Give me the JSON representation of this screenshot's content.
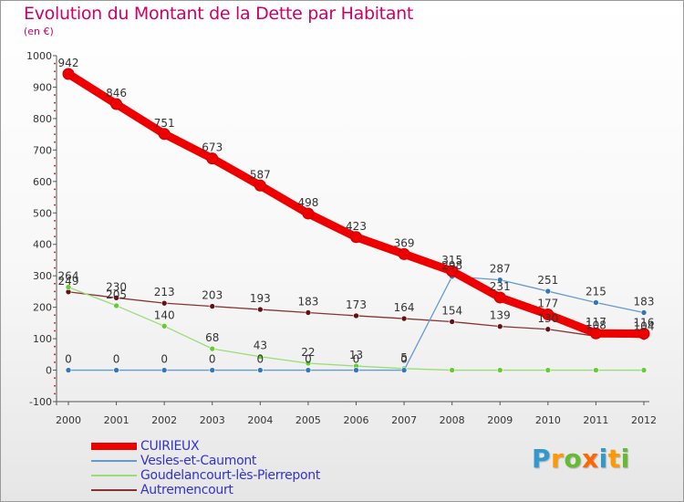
{
  "header": {
    "title": "Evolution du Montant de la Dette par Habitant",
    "subtitle": "(en €)"
  },
  "logo": {
    "text": "Proxiti",
    "letter_colors": [
      "#3399cc",
      "#ff9900",
      "#66bb33",
      "#ff6600",
      "#3399cc",
      "#ff9900",
      "#66bb33"
    ]
  },
  "chart_data": {
    "type": "line",
    "title": "Evolution du Montant de la Dette par Habitant",
    "subtitle": "(en €)",
    "x": [
      "2000",
      "2001",
      "2002",
      "2003",
      "2004",
      "2005",
      "2006",
      "2007",
      "2008",
      "2009",
      "2010",
      "2011",
      "2012"
    ],
    "ylim": [
      -100,
      1000
    ],
    "yticks": [
      -100,
      0,
      100,
      200,
      300,
      400,
      500,
      600,
      700,
      800,
      900,
      1000
    ],
    "grid": false,
    "legend_position": "bottom-left",
    "series": [
      {
        "name": "CUIRIEUX",
        "color": "#ee0000",
        "values": [
          942,
          846,
          751,
          673,
          587,
          498,
          423,
          369,
          315,
          231,
          177,
          117,
          116
        ],
        "labels": [
          "942",
          "846",
          "751",
          "673",
          "587",
          "498",
          "423",
          "369",
          "315",
          "231",
          "177",
          "117",
          "116"
        ]
      },
      {
        "name": "Vesles-et-Caumont",
        "color": "#6699cc",
        "marker_color": "#3377bb",
        "values": [
          0,
          0,
          0,
          0,
          0,
          0,
          0,
          0,
          298,
          287,
          251,
          215,
          183
        ],
        "labels": [
          "0",
          "0",
          "0",
          "0",
          "0",
          "0",
          "0",
          "0",
          "298",
          "287",
          "251",
          "215",
          "183"
        ]
      },
      {
        "name": "Goudelancourt-lès-Pierrepont",
        "color": "#99dd77",
        "marker_color": "#66cc33",
        "values": [
          264,
          205,
          140,
          68,
          43,
          22,
          13,
          5,
          0,
          0,
          0,
          0,
          0
        ],
        "labels": [
          "264",
          "205",
          "140",
          "68",
          "43",
          "22",
          "13",
          "5",
          "",
          "",
          "",
          "",
          ""
        ]
      },
      {
        "name": "Autremencourt",
        "color": "#883333",
        "marker_color": "#661111",
        "values": [
          249,
          230,
          213,
          203,
          193,
          183,
          173,
          164,
          154,
          139,
          130,
          108,
          104
        ],
        "labels": [
          "249",
          "230",
          "213",
          "203",
          "193",
          "183",
          "173",
          "164",
          "154",
          "139",
          "130",
          "108",
          "104"
        ]
      }
    ]
  }
}
